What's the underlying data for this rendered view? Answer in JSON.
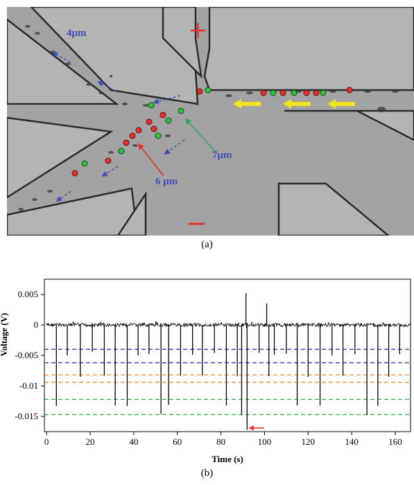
{
  "figure": {
    "caption_a": "(a)",
    "caption_b": "(b)"
  },
  "micrograph": {
    "labels": {
      "size_4": "4μm",
      "size_7": "7μm",
      "size_6": "6 μm",
      "electrode_positive": "+",
      "electrode_negative": "−"
    },
    "colors": {
      "label_blue": "#3d4fb8",
      "plus_red": "#e8302a",
      "minus_red": "#e8302a",
      "flow_arrow_yellow": "#f2e31b",
      "bead_red": "#e8302a",
      "bead_green": "#2ec43c",
      "pointer_red": "#e8302a",
      "pointer_green": "#2aa860",
      "background": "#a6a6a6"
    }
  },
  "chart_data": {
    "type": "line",
    "xlabel": "Time (s)",
    "ylabel": "Voltage (V)",
    "xlim": [
      -1,
      167
    ],
    "ylim": [
      -0.0175,
      0.0075
    ],
    "xticks": [
      "0",
      "20",
      "40",
      "60",
      "80",
      "100",
      "120",
      "140",
      "160"
    ],
    "yticks": [
      "0.005",
      "0",
      "-0.005",
      "-0.01",
      "-0.015"
    ],
    "grid": false,
    "baseline": 0,
    "series": [
      {
        "color": "#000000",
        "spikes": [
          {
            "x": 4.5,
            "y": -0.0133
          },
          {
            "x": 9.5,
            "y": -0.005
          },
          {
            "x": 15.5,
            "y": -0.0085
          },
          {
            "x": 21.0,
            "y": -0.0044
          },
          {
            "x": 26.5,
            "y": -0.0083
          },
          {
            "x": 31.5,
            "y": -0.0132
          },
          {
            "x": 37.0,
            "y": -0.0133
          },
          {
            "x": 42.0,
            "y": -0.005
          },
          {
            "x": 47.0,
            "y": -0.0048
          },
          {
            "x": 52.5,
            "y": -0.0146
          },
          {
            "x": 56.0,
            "y": -0.0131
          },
          {
            "x": 61.5,
            "y": -0.0083
          },
          {
            "x": 67.0,
            "y": -0.0049
          },
          {
            "x": 71.5,
            "y": -0.0083
          },
          {
            "x": 77.0,
            "y": -0.0046
          },
          {
            "x": 82.5,
            "y": -0.0132
          },
          {
            "x": 87.5,
            "y": -0.0084
          },
          {
            "x": 89.5,
            "y": -0.0148
          },
          {
            "x": 91.5,
            "y": 0.0052
          },
          {
            "x": 92.0,
            "y": -0.0172
          },
          {
            "x": 97.5,
            "y": -0.0046
          },
          {
            "x": 101.0,
            "y": 0.0035
          },
          {
            "x": 102.0,
            "y": -0.0084
          },
          {
            "x": 104.5,
            "y": -0.0049
          },
          {
            "x": 110.0,
            "y": -0.0047
          },
          {
            "x": 115.0,
            "y": -0.0132
          },
          {
            "x": 120.0,
            "y": -0.0085
          },
          {
            "x": 125.5,
            "y": -0.0132
          },
          {
            "x": 131.0,
            "y": -0.005
          },
          {
            "x": 136.0,
            "y": -0.0083
          },
          {
            "x": 141.5,
            "y": -0.0048
          },
          {
            "x": 147.0,
            "y": -0.0148
          },
          {
            "x": 152.0,
            "y": -0.0133
          },
          {
            "x": 157.0,
            "y": -0.0085
          },
          {
            "x": 162.0,
            "y": -0.0048
          }
        ]
      }
    ],
    "threshold_lines": [
      {
        "color": "#2b3fa8",
        "y": -0.004
      },
      {
        "color": "#2b3fa8",
        "y": -0.0062
      },
      {
        "color": "#ef8a2a",
        "y": -0.0082
      },
      {
        "color": "#ef8a2a",
        "y": -0.0094
      },
      {
        "color": "#2bb04a",
        "y": -0.0122
      },
      {
        "color": "#2bb04a",
        "y": -0.0147
      }
    ],
    "annotation_arrow": {
      "color": "#e8302a",
      "x": 96,
      "y": -0.0169
    }
  }
}
